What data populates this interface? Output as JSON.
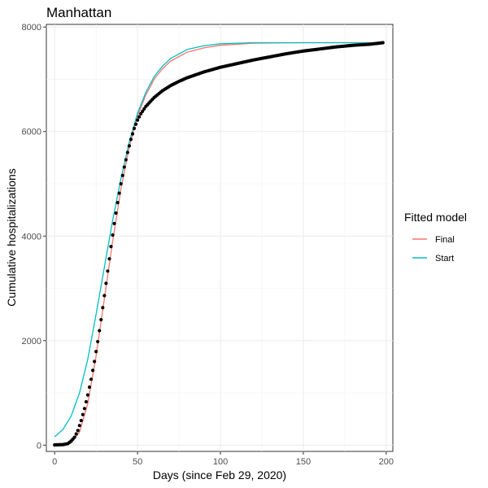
{
  "chart_data": {
    "type": "line",
    "title": "Manhattan",
    "xlabel": "Days (since Feb 29, 2020)",
    "ylabel": "Cumulative hospitalizations",
    "xlim": [
      -5,
      204
    ],
    "ylim": [
      -120,
      8050
    ],
    "x_ticks": [
      0,
      50,
      100,
      150,
      200
    ],
    "y_ticks": [
      0,
      2000,
      4000,
      6000,
      8000
    ],
    "x_tick_labels": [
      "0",
      "50",
      "100",
      "150",
      "200"
    ],
    "y_tick_labels": [
      "0",
      "2000",
      "4000",
      "6000",
      "8000"
    ],
    "grid": true,
    "legend": {
      "title": "Fitted model",
      "position": "right"
    },
    "observed": {
      "style": "points",
      "color": "#000000",
      "x_range": [
        0,
        198
      ],
      "points": [
        [
          0,
          5
        ],
        [
          5,
          10
        ],
        [
          8,
          30
        ],
        [
          10,
          80
        ],
        [
          12,
          150
        ],
        [
          14,
          280
        ],
        [
          16,
          470
        ],
        [
          18,
          700
        ],
        [
          20,
          960
        ],
        [
          22,
          1260
        ],
        [
          24,
          1600
        ],
        [
          26,
          1980
        ],
        [
          28,
          2400
        ],
        [
          30,
          2860
        ],
        [
          32,
          3330
        ],
        [
          34,
          3800
        ],
        [
          36,
          4240
        ],
        [
          38,
          4640
        ],
        [
          40,
          5000
        ],
        [
          42,
          5320
        ],
        [
          44,
          5600
        ],
        [
          46,
          5850
        ],
        [
          48,
          6060
        ],
        [
          50,
          6220
        ],
        [
          52,
          6340
        ],
        [
          55,
          6480
        ],
        [
          60,
          6650
        ],
        [
          65,
          6780
        ],
        [
          70,
          6880
        ],
        [
          75,
          6960
        ],
        [
          80,
          7030
        ],
        [
          90,
          7140
        ],
        [
          100,
          7230
        ],
        [
          110,
          7300
        ],
        [
          120,
          7370
        ],
        [
          130,
          7430
        ],
        [
          140,
          7490
        ],
        [
          150,
          7540
        ],
        [
          160,
          7580
        ],
        [
          170,
          7620
        ],
        [
          180,
          7650
        ],
        [
          190,
          7670
        ],
        [
          198,
          7700
        ]
      ]
    },
    "series": [
      {
        "name": "Final",
        "color": "#F8766D",
        "points": [
          [
            0,
            0
          ],
          [
            5,
            10
          ],
          [
            10,
            40
          ],
          [
            15,
            250
          ],
          [
            20,
            800
          ],
          [
            25,
            1700
          ],
          [
            30,
            2800
          ],
          [
            35,
            3900
          ],
          [
            40,
            4900
          ],
          [
            45,
            5700
          ],
          [
            50,
            6300
          ],
          [
            55,
            6700
          ],
          [
            60,
            7000
          ],
          [
            65,
            7200
          ],
          [
            70,
            7350
          ],
          [
            80,
            7520
          ],
          [
            90,
            7600
          ],
          [
            100,
            7650
          ],
          [
            120,
            7690
          ],
          [
            150,
            7700
          ],
          [
            198,
            7700
          ]
        ]
      },
      {
        "name": "Start",
        "color": "#00BFC4",
        "points": [
          [
            0,
            160
          ],
          [
            5,
            300
          ],
          [
            10,
            560
          ],
          [
            15,
            1000
          ],
          [
            20,
            1650
          ],
          [
            25,
            2500
          ],
          [
            30,
            3400
          ],
          [
            35,
            4300
          ],
          [
            40,
            5100
          ],
          [
            45,
            5800
          ],
          [
            50,
            6350
          ],
          [
            55,
            6750
          ],
          [
            60,
            7050
          ],
          [
            65,
            7250
          ],
          [
            70,
            7400
          ],
          [
            80,
            7570
          ],
          [
            90,
            7640
          ],
          [
            100,
            7680
          ],
          [
            120,
            7700
          ],
          [
            198,
            7700
          ]
        ]
      }
    ]
  }
}
